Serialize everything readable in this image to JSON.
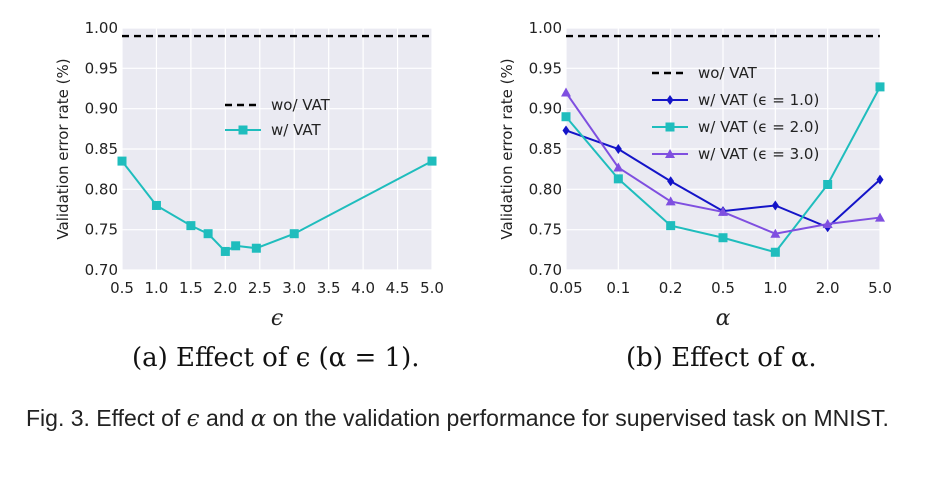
{
  "chart_data": [
    {
      "type": "line",
      "panel": "a",
      "xlabel": "ϵ",
      "ylabel": "Validation error rate (%)",
      "x_ticks": [
        "0.5",
        "1.0",
        "1.5",
        "2.0",
        "2.5",
        "3.0",
        "3.5",
        "4.0",
        "4.5",
        "5.0"
      ],
      "y_ticks": [
        "0.70",
        "0.75",
        "0.80",
        "0.85",
        "0.90",
        "0.95",
        "1.00"
      ],
      "xlim": [
        0.5,
        5.0
      ],
      "ylim": [
        0.7,
        1.0
      ],
      "grid": true,
      "legend_position": "center",
      "series": [
        {
          "name": "wo/ VAT",
          "style": "dashed",
          "color": "#000000",
          "x": [
            0.5,
            5.0
          ],
          "y": [
            0.99,
            0.99
          ]
        },
        {
          "name": "w/ VAT",
          "style": "solid",
          "marker": "square",
          "color": "#1fbdbd",
          "x": [
            0.5,
            1.0,
            1.5,
            1.75,
            2.0,
            2.15,
            2.45,
            3.0,
            5.0
          ],
          "y": [
            0.835,
            0.78,
            0.755,
            0.745,
            0.723,
            0.73,
            0.727,
            0.745,
            0.835
          ]
        }
      ],
      "caption": "(a) Effect of ϵ (α = 1)."
    },
    {
      "type": "line",
      "panel": "b",
      "xlabel": "α",
      "ylabel": "Validation error rate (%)",
      "x_ticks": [
        "0.05",
        "0.1",
        "0.2",
        "0.5",
        "1.0",
        "2.0",
        "5.0"
      ],
      "y_ticks": [
        "0.70",
        "0.75",
        "0.80",
        "0.85",
        "0.90",
        "0.95",
        "1.00"
      ],
      "x_scale": "log",
      "ylim": [
        0.7,
        1.0
      ],
      "grid": true,
      "legend_position": "top-right",
      "series": [
        {
          "name": "wo/ VAT",
          "style": "dashed",
          "color": "#000000",
          "x": [
            0.05,
            5.0
          ],
          "y": [
            0.99,
            0.99
          ]
        },
        {
          "name": "w/ VAT (ϵ = 1.0)",
          "style": "solid",
          "marker": "diamond",
          "color": "#1414c8",
          "x": [
            0.05,
            0.1,
            0.2,
            0.5,
            1.0,
            2.0,
            5.0
          ],
          "y": [
            0.873,
            0.85,
            0.81,
            0.773,
            0.78,
            0.753,
            0.812
          ]
        },
        {
          "name": "w/ VAT (ϵ = 2.0)",
          "style": "solid",
          "marker": "square",
          "color": "#1fbdbd",
          "x": [
            0.05,
            0.1,
            0.2,
            0.5,
            1.0,
            2.0,
            5.0
          ],
          "y": [
            0.89,
            0.813,
            0.755,
            0.74,
            0.722,
            0.806,
            0.927
          ]
        },
        {
          "name": "w/ VAT (ϵ = 3.0)",
          "style": "solid",
          "marker": "triangle",
          "color": "#7f4fe0",
          "x": [
            0.05,
            0.1,
            0.2,
            0.5,
            1.0,
            2.0,
            5.0
          ],
          "y": [
            0.92,
            0.827,
            0.785,
            0.772,
            0.745,
            0.757,
            0.765
          ]
        }
      ],
      "caption": "(b) Effect of α."
    }
  ],
  "figure_caption": {
    "prefix": "Fig. 3. Effect of",
    "symbol1": "ϵ",
    "middle": "and",
    "symbol2": "α",
    "suffix": "on the validation performance for supervised task on MNIST."
  }
}
